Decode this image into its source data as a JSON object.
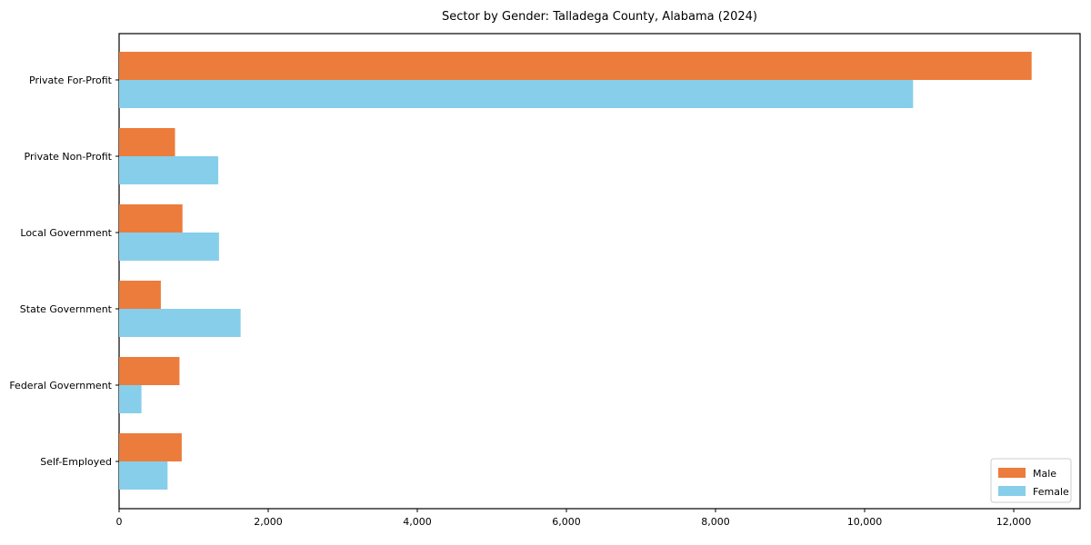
{
  "page": {
    "title": "Sector by Gender: Talladega County, Alabama (2024)"
  },
  "chart_data": {
    "type": "bar",
    "orientation": "horizontal",
    "title": "Sector by Gender: Talladega County, Alabama (2024)",
    "categories": [
      "Private For-Profit",
      "Private Non-Profit",
      "Local Government",
      "State Government",
      "Federal Government",
      "Self-Employed"
    ],
    "series": [
      {
        "name": "Male",
        "color": "#ec7c3c",
        "values": [
          12240,
          750,
          850,
          560,
          810,
          840
        ]
      },
      {
        "name": "Female",
        "color": "#87ceeb",
        "values": [
          10650,
          1330,
          1340,
          1630,
          300,
          650
        ]
      }
    ],
    "xlabel": "",
    "ylabel": "",
    "xlim": [
      0,
      12890
    ],
    "x_ticks": [
      0,
      2000,
      4000,
      6000,
      8000,
      10000,
      12000
    ],
    "x_tick_labels": [
      "0",
      "2,000",
      "4,000",
      "6,000",
      "8,000",
      "10,000",
      "12,000"
    ],
    "grid": false,
    "legend": {
      "position": "lower right",
      "entries": [
        {
          "label": "Male",
          "color": "#ec7c3c"
        },
        {
          "label": "Female",
          "color": "#87ceeb"
        }
      ]
    },
    "colors": {
      "axis": "#000000",
      "text": "#000000",
      "legend_border": "#cccccc",
      "background": "#ffffff"
    }
  }
}
